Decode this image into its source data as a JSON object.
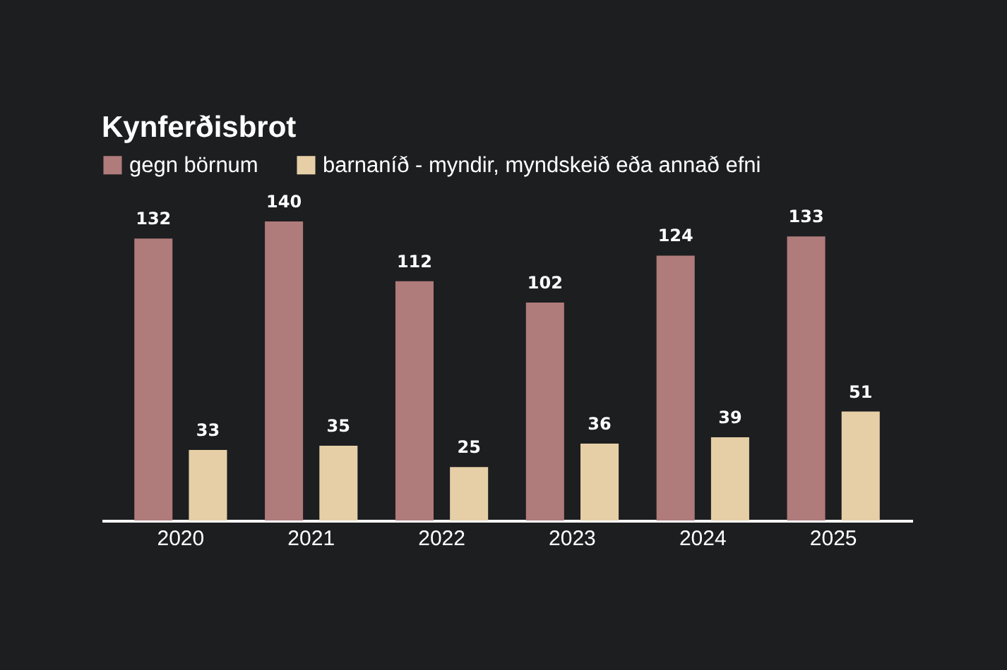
{
  "chart_data": {
    "type": "bar",
    "title": "Kynferðisbrot",
    "categories": [
      "2020",
      "2021",
      "2022",
      "2023",
      "2024",
      "2025"
    ],
    "series": [
      {
        "name": "gegn börnum",
        "color": "#b07b7b",
        "values": [
          132,
          140,
          112,
          102,
          124,
          133
        ]
      },
      {
        "name": "barnaníð - myndir, myndskeið eða annað efni",
        "color": "#e6cfa6",
        "values": [
          33,
          35,
          25,
          36,
          39,
          51
        ]
      }
    ],
    "data_labels": true,
    "legend": "top left",
    "grid": false
  }
}
